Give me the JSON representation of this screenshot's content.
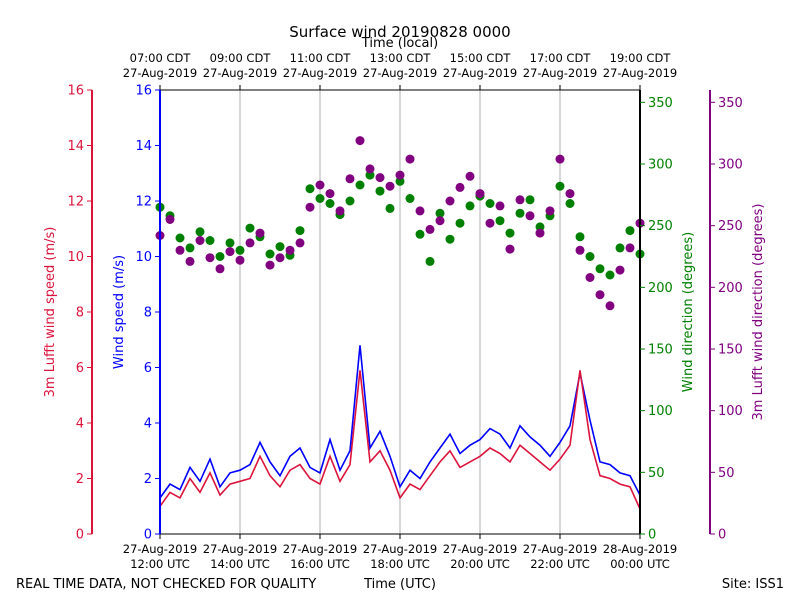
{
  "chart_data": {
    "type": "line",
    "title": "Surface wind 20190828 0000",
    "top_axis_label": "Time (local)",
    "xlabel": "Time (UTC)",
    "footer_left": "REAL TIME DATA, NOT CHECKED FOR QUALITY",
    "footer_right": "Site: ISS1",
    "x_hours_range": [
      12,
      24
    ],
    "ticks_bottom": [
      {
        "h": 12,
        "date": "27-Aug-2019",
        "time": "12:00 UTC"
      },
      {
        "h": 14,
        "date": "27-Aug-2019",
        "time": "14:00 UTC"
      },
      {
        "h": 16,
        "date": "27-Aug-2019",
        "time": "16:00 UTC"
      },
      {
        "h": 18,
        "date": "27-Aug-2019",
        "time": "18:00 UTC"
      },
      {
        "h": 20,
        "date": "27-Aug-2019",
        "time": "20:00 UTC"
      },
      {
        "h": 22,
        "date": "27-Aug-2019",
        "time": "22:00 UTC"
      },
      {
        "h": 24,
        "date": "28-Aug-2019",
        "time": "00:00 UTC"
      }
    ],
    "ticks_top": [
      {
        "h": 12,
        "time": "07:00 CDT",
        "date": "27-Aug-2019"
      },
      {
        "h": 14,
        "time": "09:00 CDT",
        "date": "27-Aug-2019"
      },
      {
        "h": 16,
        "time": "11:00 CDT",
        "date": "27-Aug-2019"
      },
      {
        "h": 18,
        "time": "13:00 CDT",
        "date": "27-Aug-2019"
      },
      {
        "h": 20,
        "time": "15:00 CDT",
        "date": "27-Aug-2019"
      },
      {
        "h": 22,
        "time": "17:00 CDT",
        "date": "27-Aug-2019"
      },
      {
        "h": 24,
        "time": "19:00 CDT",
        "date": "27-Aug-2019"
      }
    ],
    "axes": {
      "lufft_speed": {
        "label": "3m Lufft wind speed (m/s)",
        "range": [
          0,
          16
        ],
        "ticks": [
          "0",
          "2",
          "4",
          "6",
          "8",
          "10",
          "12",
          "14",
          "16"
        ],
        "color": "#dc143c"
      },
      "wind_speed": {
        "label": "Wind speed (m/s)",
        "range": [
          0,
          16
        ],
        "ticks": [
          "0",
          "2",
          "4",
          "6",
          "8",
          "10",
          "12",
          "14",
          "16"
        ],
        "color": "#0000ff"
      },
      "wind_dir": {
        "label": "Wind direction (degrees)",
        "range": [
          0,
          360
        ],
        "ticks": [
          "0",
          "50",
          "100",
          "150",
          "200",
          "250",
          "300",
          "350"
        ],
        "color": "#008000"
      },
      "lufft_dir": {
        "label": "3m Lufft wind direction (degrees)",
        "range": [
          0,
          360
        ],
        "ticks": [
          "0",
          "50",
          "100",
          "150",
          "200",
          "250",
          "300",
          "350"
        ],
        "color": "#800080"
      }
    },
    "series": [
      {
        "name": "Wind speed (m/s)",
        "axis": "wind_speed",
        "kind": "line",
        "color": "#0000ff",
        "x_hours": [
          12.0,
          12.25,
          12.5,
          12.75,
          13.0,
          13.25,
          13.5,
          13.75,
          14.0,
          14.25,
          14.5,
          14.75,
          15.0,
          15.25,
          15.5,
          15.75,
          16.0,
          16.25,
          16.5,
          16.75,
          17.0,
          17.25,
          17.5,
          17.75,
          18.0,
          18.25,
          18.5,
          18.75,
          19.0,
          19.25,
          19.5,
          19.75,
          20.0,
          20.25,
          20.5,
          20.75,
          21.0,
          21.25,
          21.5,
          21.75,
          22.0,
          22.25,
          22.5,
          22.75,
          23.0,
          23.25,
          23.5,
          23.75,
          24.0
        ],
        "values": [
          1.3,
          1.8,
          1.6,
          2.4,
          1.9,
          2.7,
          1.7,
          2.2,
          2.3,
          2.5,
          3.3,
          2.6,
          2.1,
          2.8,
          3.1,
          2.4,
          2.2,
          3.4,
          2.3,
          3.0,
          6.8,
          3.1,
          3.7,
          2.8,
          1.7,
          2.3,
          2.0,
          2.6,
          3.1,
          3.6,
          2.9,
          3.2,
          3.4,
          3.8,
          3.6,
          3.1,
          3.9,
          3.5,
          3.2,
          2.8,
          3.3,
          3.9,
          5.8,
          4.1,
          2.6,
          2.5,
          2.2,
          2.1,
          1.4
        ]
      },
      {
        "name": "3m Lufft wind speed (m/s)",
        "axis": "lufft_speed",
        "kind": "line",
        "color": "#dc143c",
        "x_hours": [
          12.0,
          12.25,
          12.5,
          12.75,
          13.0,
          13.25,
          13.5,
          13.75,
          14.0,
          14.25,
          14.5,
          14.75,
          15.0,
          15.25,
          15.5,
          15.75,
          16.0,
          16.25,
          16.5,
          16.75,
          17.0,
          17.25,
          17.5,
          17.75,
          18.0,
          18.25,
          18.5,
          18.75,
          19.0,
          19.25,
          19.5,
          19.75,
          20.0,
          20.25,
          20.5,
          20.75,
          21.0,
          21.25,
          21.5,
          21.75,
          22.0,
          22.25,
          22.5,
          22.75,
          23.0,
          23.25,
          23.5,
          23.75,
          24.0
        ],
        "values": [
          1.0,
          1.5,
          1.3,
          2.0,
          1.5,
          2.2,
          1.4,
          1.8,
          1.9,
          2.0,
          2.8,
          2.1,
          1.7,
          2.3,
          2.5,
          2.0,
          1.8,
          2.8,
          1.9,
          2.5,
          5.9,
          2.6,
          3.0,
          2.3,
          1.3,
          1.8,
          1.6,
          2.1,
          2.6,
          3.0,
          2.4,
          2.6,
          2.8,
          3.1,
          2.9,
          2.6,
          3.2,
          2.9,
          2.6,
          2.3,
          2.7,
          3.2,
          5.9,
          3.4,
          2.1,
          2.0,
          1.8,
          1.7,
          0.9
        ]
      },
      {
        "name": "Wind direction (degrees)",
        "axis": "wind_dir",
        "kind": "scatter",
        "color": "#008000",
        "x_hours": [
          12.0,
          12.25,
          12.5,
          12.75,
          13.0,
          13.25,
          13.5,
          13.75,
          14.0,
          14.25,
          14.5,
          14.75,
          15.0,
          15.25,
          15.5,
          15.75,
          16.0,
          16.25,
          16.5,
          16.75,
          17.0,
          17.25,
          17.5,
          17.75,
          18.0,
          18.25,
          18.5,
          18.75,
          19.0,
          19.25,
          19.5,
          19.75,
          20.0,
          20.25,
          20.5,
          20.75,
          21.0,
          21.25,
          21.5,
          21.75,
          22.0,
          22.25,
          22.5,
          22.75,
          23.0,
          23.25,
          23.5,
          23.75,
          24.0
        ],
        "values": [
          265,
          258,
          240,
          232,
          245,
          238,
          225,
          236,
          230,
          248,
          241,
          227,
          233,
          226,
          246,
          280,
          272,
          268,
          259,
          270,
          283,
          291,
          278,
          264,
          286,
          272,
          243,
          221,
          260,
          239,
          252,
          266,
          274,
          268,
          254,
          244,
          260,
          271,
          249,
          258,
          282,
          268,
          241,
          225,
          215,
          210,
          232,
          246,
          227
        ]
      },
      {
        "name": "3m Lufft wind direction (degrees)",
        "axis": "lufft_dir",
        "kind": "scatter",
        "color": "#800080",
        "x_hours": [
          12.0,
          12.25,
          12.5,
          12.75,
          13.0,
          13.25,
          13.5,
          13.75,
          14.0,
          14.25,
          14.5,
          14.75,
          15.0,
          15.25,
          15.5,
          15.75,
          16.0,
          16.25,
          16.5,
          16.75,
          17.0,
          17.25,
          17.5,
          17.75,
          18.0,
          18.25,
          18.5,
          18.75,
          19.0,
          19.25,
          19.5,
          19.75,
          20.0,
          20.25,
          20.5,
          20.75,
          21.0,
          21.25,
          21.5,
          21.75,
          22.0,
          22.25,
          22.5,
          22.75,
          23.0,
          23.25,
          23.5,
          23.75,
          24.0
        ],
        "values": [
          242,
          255,
          230,
          221,
          238,
          224,
          215,
          229,
          222,
          236,
          244,
          218,
          224,
          230,
          236,
          265,
          283,
          276,
          262,
          288,
          319,
          296,
          289,
          282,
          291,
          304,
          262,
          247,
          254,
          270,
          281,
          290,
          276,
          252,
          266,
          231,
          271,
          258,
          244,
          262,
          304,
          276,
          230,
          208,
          194,
          185,
          214,
          232,
          252
        ]
      }
    ]
  }
}
